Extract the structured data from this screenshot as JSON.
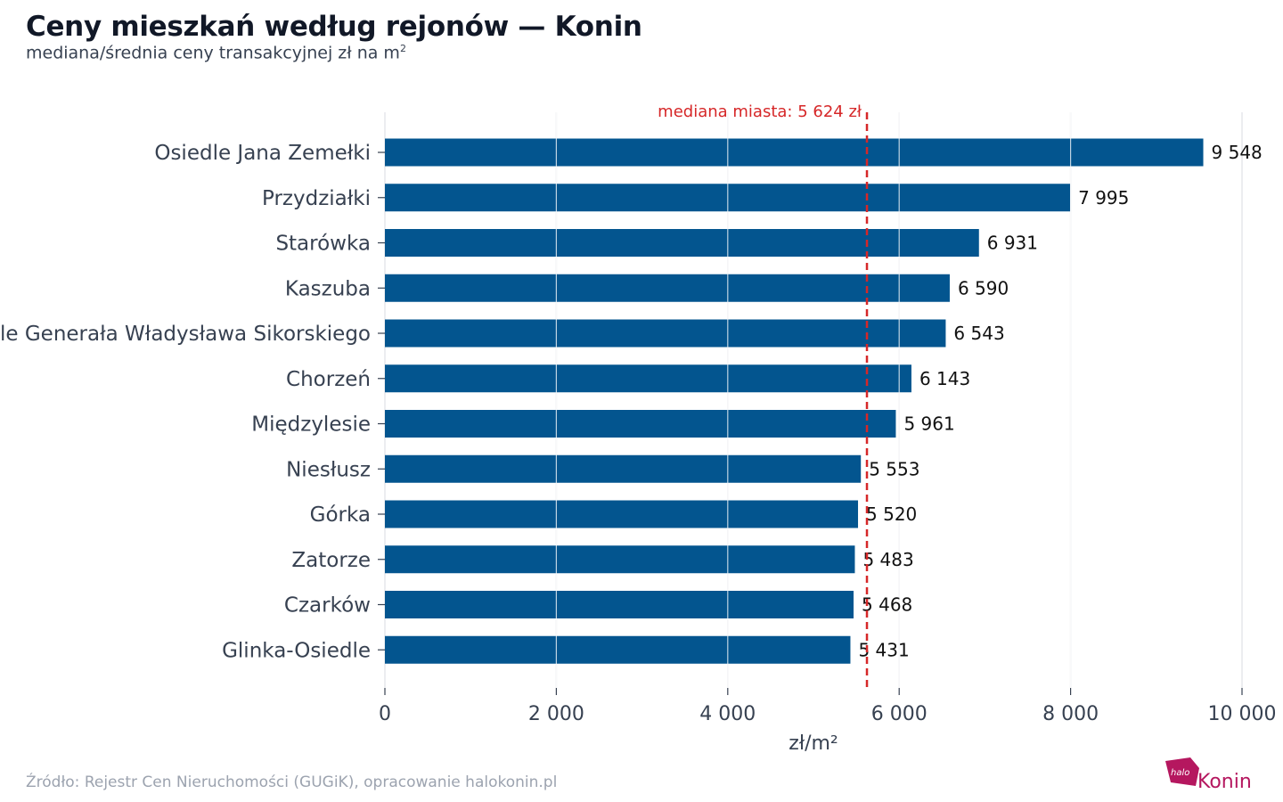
{
  "header": {
    "title": "Ceny mieszkań według rejonów — Konin",
    "subtitle": "mediana/średnia ceny transakcyjnej zł na m",
    "subtitle_sup": "2"
  },
  "footer": {
    "source": "Źródło: Rejestr Cen Nieruchomości (GUGiK), opracowanie halokonin.pl"
  },
  "logo": {
    "text": "Konin",
    "mark_text": "halo",
    "color": "#b5175f"
  },
  "colors": {
    "bar": "#03558f",
    "median": "#d62728",
    "grid": "#e5e7eb"
  },
  "chart_data": {
    "type": "bar",
    "orientation": "horizontal",
    "categories": [
      "Osiedle Jana Zemełki",
      "Przydziałki",
      "Starówka",
      "Kaszuba",
      "Osiedle Generała Władysława Sikorskiego",
      "Chorzeń",
      "Międzylesie",
      "Niesłusz",
      "Górka",
      "Zatorze",
      "Czarków",
      "Glinka-Osiedle"
    ],
    "values": [
      9548,
      7995,
      6931,
      6590,
      6543,
      6143,
      5961,
      5553,
      5520,
      5483,
      5468,
      5431
    ],
    "value_labels": [
      "9 548",
      "7 995",
      "6 931",
      "6 590",
      "6 543",
      "6 143",
      "5 961",
      "5 553",
      "5 520",
      "5 483",
      "5 468",
      "5 431"
    ],
    "xlim": [
      0,
      10000
    ],
    "xticks": [
      0,
      2000,
      4000,
      6000,
      8000,
      10000
    ],
    "xtick_labels": [
      "0",
      "2 000",
      "4 000",
      "6 000",
      "8 000",
      "10 000"
    ],
    "xlabel": "zł/m²",
    "ylabel": "",
    "grid": "vertical",
    "reference_line": {
      "value": 5624,
      "label": "mediana miasta: 5 624 zł",
      "style": "dashed"
    }
  }
}
